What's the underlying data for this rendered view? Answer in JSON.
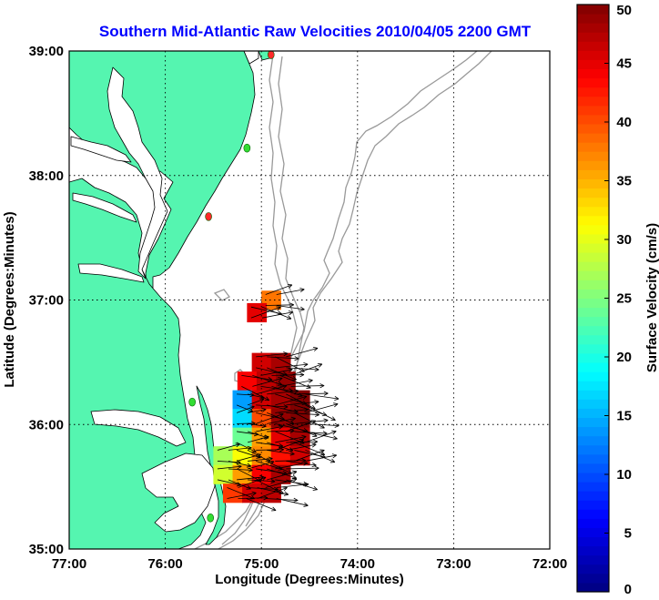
{
  "chart_data": {
    "type": "heatmap",
    "title": "Southern Mid-Atlantic Raw Velocities 2010/04/05 2200 GMT",
    "xlabel": "Longitude (Degrees:Minutes)",
    "ylabel": "Latitude (Degrees:Minutes)",
    "x_ticks": [
      "77:00",
      "76:00",
      "75:00",
      "74:00",
      "73:00",
      "72:00"
    ],
    "y_ticks": [
      "39:00",
      "38:00",
      "37:00",
      "36:00",
      "35:00"
    ],
    "xlim_deg_west": [
      77,
      72
    ],
    "ylim_deg_north": [
      35,
      39
    ],
    "grid": true,
    "colorbar": {
      "label": "Surface Velocity (cm/s)",
      "range": [
        0,
        50
      ],
      "ticks": [
        "0",
        "5",
        "10",
        "15",
        "20",
        "25",
        "30",
        "35",
        "40",
        "45",
        "50"
      ],
      "colormap": "jet"
    },
    "land_color": "#55f5b0",
    "contour_color": "#999999",
    "site_markers": [
      {
        "lon_w": 74.9,
        "lat_n": 38.97,
        "color": "#ff2a2a"
      },
      {
        "lon_w": 75.15,
        "lat_n": 38.22,
        "color": "#33dd33"
      },
      {
        "lon_w": 75.55,
        "lat_n": 37.67,
        "color": "#ff2a2a"
      },
      {
        "lon_w": 75.72,
        "lat_n": 36.18,
        "color": "#33dd33"
      },
      {
        "lon_w": 75.53,
        "lat_n": 35.25,
        "color": "#33dd33"
      }
    ],
    "velocity_cells": [
      {
        "lon_w": 74.9,
        "lat_n": 37.0,
        "v": 38
      },
      {
        "lon_w": 75.05,
        "lat_n": 36.9,
        "v": 45
      },
      {
        "lon_w": 75.0,
        "lat_n": 36.5,
        "v": 46
      },
      {
        "lon_w": 74.8,
        "lat_n": 36.5,
        "v": 48
      },
      {
        "lon_w": 75.15,
        "lat_n": 36.35,
        "v": 44
      },
      {
        "lon_w": 74.95,
        "lat_n": 36.35,
        "v": 47
      },
      {
        "lon_w": 74.75,
        "lat_n": 36.35,
        "v": 49
      },
      {
        "lon_w": 75.2,
        "lat_n": 36.2,
        "v": 14
      },
      {
        "lon_w": 75.0,
        "lat_n": 36.2,
        "v": 46
      },
      {
        "lon_w": 74.8,
        "lat_n": 36.2,
        "v": 48
      },
      {
        "lon_w": 74.6,
        "lat_n": 36.2,
        "v": 50
      },
      {
        "lon_w": 75.2,
        "lat_n": 36.05,
        "v": 17
      },
      {
        "lon_w": 75.0,
        "lat_n": 36.05,
        "v": 40
      },
      {
        "lon_w": 74.8,
        "lat_n": 36.05,
        "v": 49
      },
      {
        "lon_w": 74.6,
        "lat_n": 36.05,
        "v": 50
      },
      {
        "lon_w": 75.2,
        "lat_n": 35.9,
        "v": 24
      },
      {
        "lon_w": 75.0,
        "lat_n": 35.9,
        "v": 36
      },
      {
        "lon_w": 74.8,
        "lat_n": 35.9,
        "v": 45
      },
      {
        "lon_w": 74.6,
        "lat_n": 35.9,
        "v": 48
      },
      {
        "lon_w": 75.4,
        "lat_n": 35.75,
        "v": 27
      },
      {
        "lon_w": 75.2,
        "lat_n": 35.75,
        "v": 31
      },
      {
        "lon_w": 75.0,
        "lat_n": 35.75,
        "v": 37
      },
      {
        "lon_w": 74.8,
        "lat_n": 35.75,
        "v": 43
      },
      {
        "lon_w": 74.6,
        "lat_n": 35.75,
        "v": 46
      },
      {
        "lon_w": 75.4,
        "lat_n": 35.6,
        "v": 29
      },
      {
        "lon_w": 75.2,
        "lat_n": 35.6,
        "v": 36
      },
      {
        "lon_w": 75.0,
        "lat_n": 35.6,
        "v": 44
      },
      {
        "lon_w": 74.8,
        "lat_n": 35.6,
        "v": 48
      },
      {
        "lon_w": 75.3,
        "lat_n": 35.45,
        "v": 41
      },
      {
        "lon_w": 75.1,
        "lat_n": 35.45,
        "v": 46
      },
      {
        "lon_w": 74.9,
        "lat_n": 35.45,
        "v": 47
      }
    ]
  }
}
